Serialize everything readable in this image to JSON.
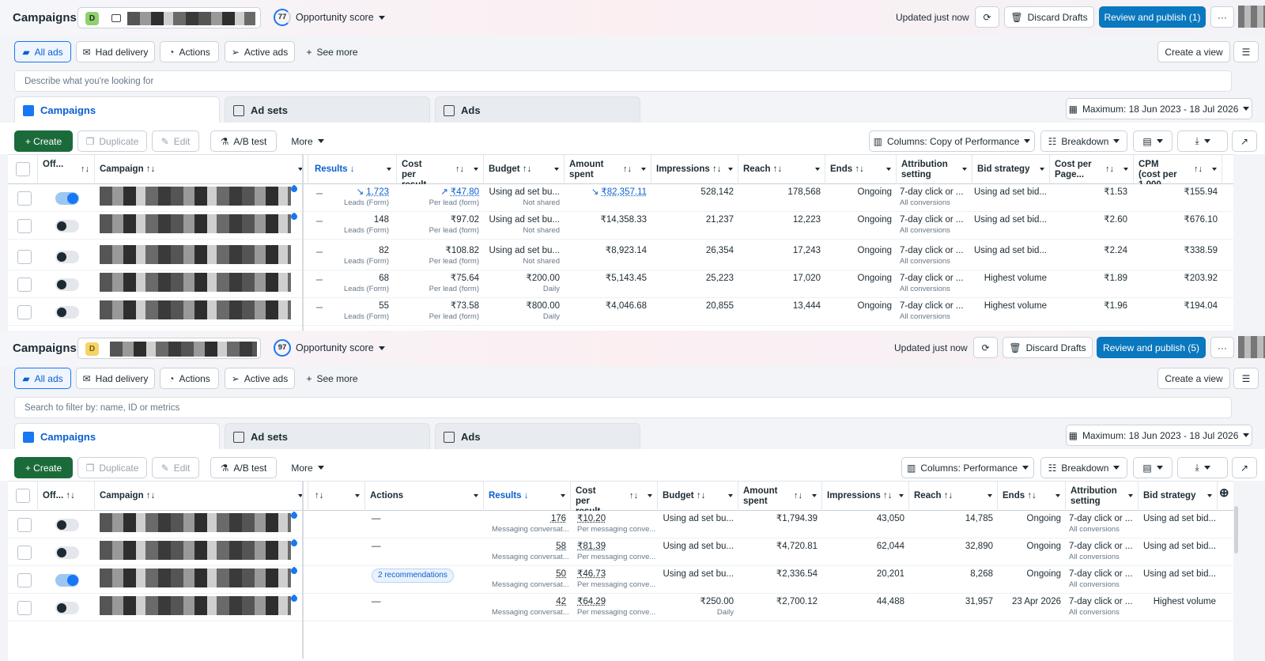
{
  "panes": [
    {
      "title": "Campaigns",
      "account_badge": "D",
      "badge_color": "#8fd16b",
      "opportunity": {
        "score": "77",
        "label": "Opportunity score"
      },
      "updated": "Updated just now",
      "discard": "Discard Drafts",
      "publish": "Review and publish (1)",
      "more": "···",
      "filters": [
        "All ads",
        "Had delivery",
        "Actions",
        "Active ads"
      ],
      "see_more": "See more",
      "create_view": "Create a view",
      "search_text": "Describe what you're looking for",
      "tabs": [
        "Campaigns",
        "Ad sets",
        "Ads"
      ],
      "date_range": "Maximum: 18 Jun 2023 - 18 Jul 2026",
      "toolbar": {
        "create": "+ Create",
        "duplicate": "Duplicate",
        "edit": "Edit",
        "ab": "A/B test",
        "more": "More",
        "columns": "Columns: Copy of Performance",
        "breakdown": "Breakdown"
      },
      "headers": [
        "Off...",
        "Campaign",
        "Results",
        "Cost per result",
        "Budget",
        "Amount spent",
        "Impressions",
        "Reach",
        "Ends",
        "Attribution setting",
        "Bid strategy",
        "Cost per Page...",
        "CPM (cost per 1,000..."
      ],
      "rows": [
        {
          "on": true,
          "results": "1,723",
          "results_sub": "Leads (Form)",
          "cpr": "₹47.80",
          "cpr_sub": "Per lead (form)",
          "budget": "Using ad set bu...",
          "budget_sub": "Not shared",
          "spent": "₹82,357.11",
          "impr": "528,142",
          "reach": "178,568",
          "ends": "Ongoing",
          "attr": "7-day click or ...",
          "attr_sub": "All conversions",
          "bid": "Using ad set bid...",
          "cpp": "₹1.53",
          "cpm": "₹155.94"
        },
        {
          "on": false,
          "results": "148",
          "results_sub": "Leads (Form)",
          "cpr": "₹97.02",
          "cpr_sub": "Per lead (form)",
          "budget": "Using ad set bu...",
          "budget_sub": "Not shared",
          "spent": "₹14,358.33",
          "impr": "21,237",
          "reach": "12,223",
          "ends": "Ongoing",
          "attr": "7-day click or ...",
          "attr_sub": "All conversions",
          "bid": "Using ad set bid...",
          "cpp": "₹2.60",
          "cpm": "₹676.10"
        },
        {
          "on": false,
          "results": "82",
          "results_sub": "Leads (Form)",
          "cpr": "₹108.82",
          "cpr_sub": "Per lead (form)",
          "budget": "Using ad set bu...",
          "budget_sub": "Not shared",
          "spent": "₹8,923.14",
          "impr": "26,354",
          "reach": "17,243",
          "ends": "Ongoing",
          "attr": "7-day click or ...",
          "attr_sub": "All conversions",
          "bid": "Using ad set bid...",
          "cpp": "₹2.24",
          "cpm": "₹338.59"
        },
        {
          "on": false,
          "results": "68",
          "results_sub": "Leads (Form)",
          "cpr": "₹75.64",
          "cpr_sub": "Per lead (form)",
          "budget": "₹200.00",
          "budget_sub": "Daily",
          "spent": "₹5,143.45",
          "impr": "25,223",
          "reach": "17,020",
          "ends": "Ongoing",
          "attr": "7-day click or ...",
          "attr_sub": "All conversions",
          "bid": "Highest volume",
          "cpp": "₹1.89",
          "cpm": "₹203.92"
        },
        {
          "on": false,
          "results": "55",
          "results_sub": "Leads (Form)",
          "cpr": "₹73.58",
          "cpr_sub": "Per lead (form)",
          "budget": "₹800.00",
          "budget_sub": "Daily",
          "spent": "₹4,046.68",
          "impr": "20,855",
          "reach": "13,444",
          "ends": "Ongoing",
          "attr": "7-day click or ...",
          "attr_sub": "All conversions",
          "bid": "Highest volume",
          "cpp": "₹1.96",
          "cpm": "₹194.04"
        }
      ]
    },
    {
      "title": "Campaigns",
      "account_badge": "D",
      "badge_color": "#f5d36b",
      "opportunity": {
        "score": "97",
        "label": "Opportunity score"
      },
      "updated": "Updated just now",
      "discard": "Discard Drafts",
      "publish": "Review and publish (5)",
      "more": "···",
      "filters": [
        "All ads",
        "Had delivery",
        "Actions",
        "Active ads"
      ],
      "see_more": "See more",
      "create_view": "Create a view",
      "search_text": "Search to filter by: name, ID or metrics",
      "tabs": [
        "Campaigns",
        "Ad sets",
        "Ads"
      ],
      "date_range": "Maximum: 18 Jun 2023 - 18 Jul 2026",
      "toolbar": {
        "create": "+ Create",
        "duplicate": "Duplicate",
        "edit": "Edit",
        "ab": "A/B test",
        "more": "More",
        "columns": "Columns: Performance",
        "breakdown": "Breakdown"
      },
      "headers": [
        "Off...",
        "Campaign",
        "Actions",
        "Results",
        "Cost per result",
        "Budget",
        "Amount spent",
        "Impressions",
        "Reach",
        "Ends",
        "Attribution setting",
        "Bid strategy"
      ],
      "rows": [
        {
          "on": false,
          "actions": "—",
          "results": "176",
          "results_sub": "Messaging conversat...",
          "cpr": "₹10.20",
          "cpr_sub": "Per messaging conve...",
          "budget": "Using ad set bu...",
          "budget_sub": "",
          "spent": "₹1,794.39",
          "impr": "43,050",
          "reach": "14,785",
          "ends": "Ongoing",
          "attr": "7-day click or ...",
          "attr_sub": "All conversions",
          "bid": "Using ad set bid..."
        },
        {
          "on": false,
          "actions": "—",
          "results": "58",
          "results_sub": "Messaging conversat...",
          "cpr": "₹81.39",
          "cpr_sub": "Per messaging conve...",
          "budget": "Using ad set bu...",
          "budget_sub": "",
          "spent": "₹4,720.81",
          "impr": "62,044",
          "reach": "32,890",
          "ends": "Ongoing",
          "attr": "7-day click or ...",
          "attr_sub": "All conversions",
          "bid": "Using ad set bid..."
        },
        {
          "on": true,
          "actions": "2 recommendations",
          "results": "50",
          "results_sub": "Messaging conversat...",
          "cpr": "₹46.73",
          "cpr_sub": "Per messaging conve...",
          "budget": "Using ad set bu...",
          "budget_sub": "",
          "spent": "₹2,336.54",
          "impr": "20,201",
          "reach": "8,268",
          "ends": "Ongoing",
          "attr": "7-day click or ...",
          "attr_sub": "All conversions",
          "bid": "Using ad set bid..."
        },
        {
          "on": false,
          "actions": "—",
          "results": "42",
          "results_sub": "Messaging conversat...",
          "cpr": "₹64.29",
          "cpr_sub": "Per messaging conve...",
          "budget": "₹250.00",
          "budget_sub": "Daily",
          "spent": "₹2,700.12",
          "impr": "44,488",
          "reach": "31,957",
          "ends": "23 Apr 2026",
          "attr": "7-day click or ...",
          "attr_sub": "All conversions",
          "bid": "Highest volume"
        }
      ]
    }
  ]
}
